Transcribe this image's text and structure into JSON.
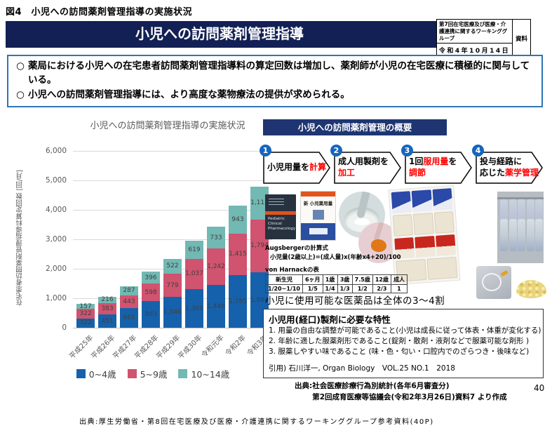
{
  "fig_title": "図4　小児への訪問薬剤管理指導の実施状況",
  "banner": {
    "title": "小児への訪問薬剤管理指導"
  },
  "info_box": {
    "meeting": "第7回在宅医療及び医療・介護連携に関するワーキンググループ",
    "date": "令和4年10月14日",
    "doc_label": "資料"
  },
  "bullets": {
    "marker": "○",
    "items": [
      "薬局における小児への在宅患者訪問薬剤管理指導料の算定回数は増加し、薬剤師が小児の在宅医療に積極的に関与している。",
      "小児への訪問薬剤管理指導には、より高度な薬物療法の提供が求められる。"
    ]
  },
  "chart_data": {
    "type": "bar",
    "stacked": true,
    "title": "小児への訪問薬剤管理指導の実施状況",
    "ylabel": "在宅患者訪問薬剤管理指導料算定回数 [回/月]",
    "categories": [
      "平成25年",
      "平成26年",
      "平成27年",
      "平成28年",
      "平成29年",
      "平成30年",
      "令和元年",
      "令和2年",
      "令和3年"
    ],
    "series": [
      {
        "name": "0~4歳",
        "color": "#1661ac",
        "values": [
          322,
          451,
          665,
          903,
          1046,
          1305,
          1446,
          1785,
          1880
        ]
      },
      {
        "name": "5~9歳",
        "color": "#d0536f",
        "values": [
          322,
          383,
          443,
          598,
          779,
          1037,
          1242,
          1415,
          1794
        ]
      },
      {
        "name": "10~14歳",
        "color": "#72b8b3",
        "values": [
          157,
          216,
          287,
          396,
          522,
          619,
          733,
          943,
          1113
        ]
      }
    ],
    "ylim": [
      0,
      6000
    ],
    "ytick_step": 1000,
    "grid": true,
    "legend_position": "bottom",
    "label_color": "#404040"
  },
  "overview": {
    "header": "小児への訪問薬剤管理の概要",
    "steps": [
      {
        "num": "1",
        "lines": [
          [
            {
              "t": "小児用量を"
            },
            {
              "t": "計算",
              "red": true
            }
          ]
        ]
      },
      {
        "num": "2",
        "lines": [
          [
            {
              "t": "成人用製剤を"
            }
          ],
          [
            {
              "t": "加工",
              "red": true
            }
          ]
        ]
      },
      {
        "num": "3",
        "lines": [
          [
            {
              "t": "1回"
            },
            {
              "t": "服用量",
              "red": true
            },
            {
              "t": "を"
            }
          ],
          [
            {
              "t": "調節",
              "red": true
            }
          ]
        ]
      },
      {
        "num": "4",
        "lines": [
          [
            {
              "t": "投与経路に"
            }
          ],
          [
            {
              "t": "応じた"
            },
            {
              "t": "薬学管理",
              "red": true
            }
          ]
        ]
      }
    ]
  },
  "books": {
    "book1_title": "Pediatric Clinical Pharmacology",
    "book2_title": "新 小児薬用量"
  },
  "augsberger": {
    "title": "Augsbergerの計算式",
    "formula": "小児量(2歳以上)=(成人量)x(年齢x4+20)/100"
  },
  "harnack": {
    "title": "von Harnackの表",
    "headers": [
      "新生児",
      "6ヶ月",
      "1歳",
      "3歳",
      "7.5歳",
      "12歳",
      "成人"
    ],
    "values": [
      "1/20~1/10",
      "1/5",
      "1/4",
      "1/3",
      "1/2",
      "2/3",
      "1"
    ]
  },
  "note_medicines": "小児に使用可能な医薬品は全体の3〜4割",
  "characteristics": {
    "title": "小児用(経口)製剤に必要な特性",
    "items": [
      "用量の自由な調整が可能であること(小児は成長に従って体表・体重が変化する)",
      "年齢に適した服薬剤形であること(錠剤・散剤・液剤などで服薬可能な剤形 )",
      "服薬しやすい味であること (味・色・匂い・口腔内でのざらつき・後味など)"
    ],
    "citation": "引用) 石川洋一, Organ Biology　VOL.25 NO.1　2018"
  },
  "sources": {
    "label": "出典:",
    "line1": "社会医療診療行為別統計(各年6月審査分)",
    "line2": "第2回成育医療等協議会(令和2年3月26日)資料7 より作成",
    "page": "40"
  },
  "footer": "出典:厚生労働省・第8回在宅医療及び医療・介護連携に関するワーキンググループ参考資料(40P)"
}
